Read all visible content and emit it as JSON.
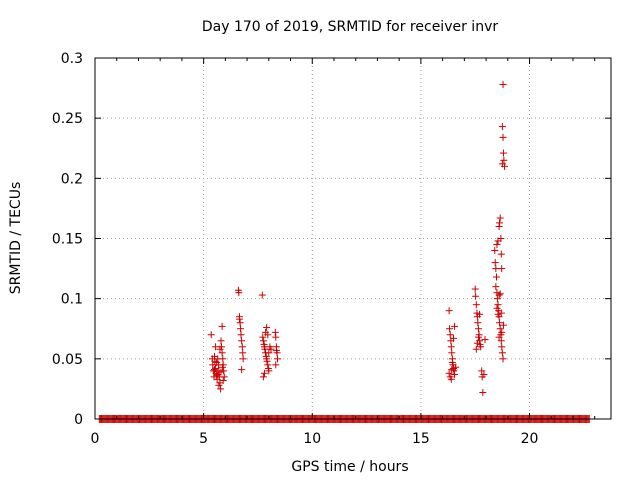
{
  "chart_data": {
    "type": "scatter",
    "title": "Day 170 of 2019, SRMTID for receiver invr",
    "xlabel": "GPS time / hours",
    "ylabel": "SRMTID / TECUs",
    "xlim": [
      0,
      23.75
    ],
    "ylim": [
      0,
      0.3
    ],
    "xticks": [
      0,
      5,
      10,
      15,
      20
    ],
    "yticks": [
      0,
      0.05,
      0.1,
      0.15,
      0.2,
      0.25,
      0.3
    ],
    "xtick_labels": [
      "0",
      "5",
      "10",
      "15",
      "20"
    ],
    "ytick_labels": [
      "0",
      "0.05",
      "0.1",
      "0.15",
      "0.2",
      "0.25",
      "0.3"
    ],
    "grid": true,
    "marker": "+",
    "color": "#cc0000",
    "zero_line_x_range": [
      0.2,
      22.8
    ],
    "series": [
      {
        "points": [
          [
            5.35,
            0.07
          ],
          [
            5.4,
            0.05
          ],
          [
            5.42,
            0.045
          ],
          [
            5.45,
            0.04
          ],
          [
            5.48,
            0.035
          ],
          [
            5.5,
            0.052
          ],
          [
            5.52,
            0.048
          ],
          [
            5.55,
            0.042
          ],
          [
            5.58,
            0.038
          ],
          [
            5.6,
            0.036
          ],
          [
            5.62,
            0.033
          ],
          [
            5.65,
            0.05
          ],
          [
            5.68,
            0.045
          ],
          [
            5.7,
            0.04
          ],
          [
            5.72,
            0.035
          ],
          [
            5.75,
            0.03
          ],
          [
            5.78,
            0.025
          ],
          [
            5.8,
            0.065
          ],
          [
            5.82,
            0.06
          ],
          [
            5.85,
            0.055
          ],
          [
            5.88,
            0.05
          ],
          [
            5.9,
            0.045
          ],
          [
            5.92,
            0.04
          ],
          [
            5.95,
            0.035
          ],
          [
            5.85,
            0.077
          ],
          [
            5.87,
            0.043
          ],
          [
            5.55,
            0.06
          ],
          [
            5.65,
            0.037
          ],
          [
            5.75,
            0.058
          ],
          [
            5.9,
            0.032
          ],
          [
            5.5,
            0.041
          ],
          [
            5.7,
            0.028
          ],
          [
            5.6,
            0.047
          ],
          [
            5.8,
            0.039
          ],
          [
            6.6,
            0.107
          ],
          [
            6.62,
            0.105
          ],
          [
            6.65,
            0.085
          ],
          [
            6.68,
            0.08
          ],
          [
            6.7,
            0.075
          ],
          [
            6.72,
            0.07
          ],
          [
            6.75,
            0.065
          ],
          [
            6.78,
            0.06
          ],
          [
            6.8,
            0.055
          ],
          [
            6.82,
            0.05
          ],
          [
            6.75,
            0.041
          ],
          [
            6.65,
            0.083
          ],
          [
            7.7,
            0.103
          ],
          [
            7.72,
            0.068
          ],
          [
            7.75,
            0.065
          ],
          [
            7.78,
            0.062
          ],
          [
            7.8,
            0.06
          ],
          [
            7.82,
            0.058
          ],
          [
            7.85,
            0.055
          ],
          [
            7.88,
            0.052
          ],
          [
            7.9,
            0.05
          ],
          [
            7.92,
            0.048
          ],
          [
            7.95,
            0.045
          ],
          [
            7.98,
            0.042
          ],
          [
            8.0,
            0.04
          ],
          [
            7.75,
            0.035
          ],
          [
            7.85,
            0.072
          ],
          [
            7.9,
            0.076
          ],
          [
            7.95,
            0.07
          ],
          [
            8.0,
            0.055
          ],
          [
            8.05,
            0.06
          ],
          [
            8.1,
            0.058
          ],
          [
            7.8,
            0.038
          ],
          [
            8.3,
            0.072
          ],
          [
            8.32,
            0.068
          ],
          [
            8.35,
            0.06
          ],
          [
            8.38,
            0.055
          ],
          [
            8.4,
            0.05
          ],
          [
            8.32,
            0.045
          ],
          [
            8.35,
            0.057
          ],
          [
            16.3,
            0.09
          ],
          [
            16.32,
            0.075
          ],
          [
            16.35,
            0.07
          ],
          [
            16.38,
            0.065
          ],
          [
            16.4,
            0.06
          ],
          [
            16.42,
            0.055
          ],
          [
            16.45,
            0.05
          ],
          [
            16.48,
            0.045
          ],
          [
            16.5,
            0.042
          ],
          [
            16.52,
            0.04
          ],
          [
            16.55,
            0.037
          ],
          [
            16.35,
            0.035
          ],
          [
            16.4,
            0.033
          ],
          [
            16.45,
            0.047
          ],
          [
            16.5,
            0.067
          ],
          [
            16.55,
            0.077
          ],
          [
            16.6,
            0.043
          ],
          [
            16.3,
            0.038
          ],
          [
            16.42,
            0.041
          ],
          [
            17.5,
            0.108
          ],
          [
            17.52,
            0.102
          ],
          [
            17.55,
            0.095
          ],
          [
            17.58,
            0.088
          ],
          [
            17.6,
            0.085
          ],
          [
            17.62,
            0.08
          ],
          [
            17.65,
            0.075
          ],
          [
            17.68,
            0.07
          ],
          [
            17.7,
            0.065
          ],
          [
            17.72,
            0.062
          ],
          [
            17.75,
            0.06
          ],
          [
            17.55,
            0.058
          ],
          [
            17.6,
            0.063
          ],
          [
            17.8,
            0.04
          ],
          [
            17.82,
            0.035
          ],
          [
            17.85,
            0.022
          ],
          [
            17.9,
            0.037
          ],
          [
            17.95,
            0.066
          ],
          [
            17.7,
            0.087
          ],
          [
            17.65,
            0.068
          ],
          [
            18.4,
            0.14
          ],
          [
            18.42,
            0.13
          ],
          [
            18.45,
            0.125
          ],
          [
            18.48,
            0.118
          ],
          [
            18.5,
            0.105
          ],
          [
            18.52,
            0.1
          ],
          [
            18.55,
            0.095
          ],
          [
            18.58,
            0.09
          ],
          [
            18.6,
            0.085
          ],
          [
            18.62,
            0.08
          ],
          [
            18.65,
            0.075
          ],
          [
            18.68,
            0.07
          ],
          [
            18.7,
            0.065
          ],
          [
            18.72,
            0.06
          ],
          [
            18.75,
            0.055
          ],
          [
            18.78,
            0.05
          ],
          [
            18.5,
            0.145
          ],
          [
            18.55,
            0.148
          ],
          [
            18.6,
            0.16
          ],
          [
            18.62,
            0.163
          ],
          [
            18.65,
            0.167
          ],
          [
            18.68,
            0.15
          ],
          [
            18.7,
            0.137
          ],
          [
            18.72,
            0.125
          ],
          [
            18.75,
            0.243
          ],
          [
            18.78,
            0.234
          ],
          [
            18.8,
            0.221
          ],
          [
            18.82,
            0.215
          ],
          [
            18.85,
            0.21
          ],
          [
            18.78,
            0.278
          ],
          [
            18.75,
            0.212
          ],
          [
            18.6,
            0.103
          ],
          [
            18.65,
            0.104
          ],
          [
            18.7,
            0.088
          ],
          [
            18.72,
            0.072
          ],
          [
            18.8,
            0.078
          ],
          [
            18.55,
            0.087
          ],
          [
            18.5,
            0.092
          ],
          [
            18.45,
            0.11
          ],
          [
            18.6,
            0.068
          ]
        ]
      }
    ]
  }
}
